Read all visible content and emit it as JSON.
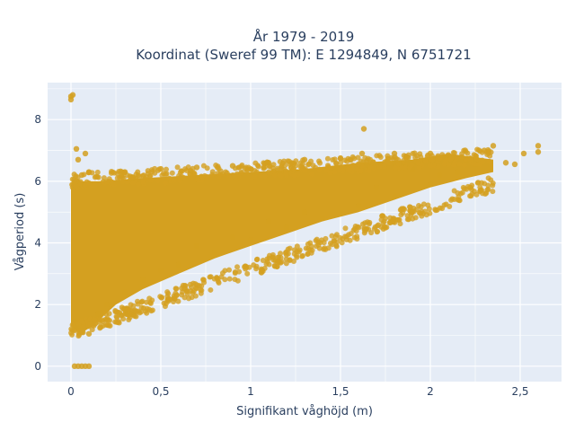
{
  "chart_data": {
    "type": "scatter",
    "title_line1": "År 1979 - 2019",
    "title_line2": "Koordinat (Sweref 99 TM): E 1294849, N 6751721",
    "xlabel": "Signifikant våghöjd (m)",
    "ylabel": "Vågperiod (s)",
    "xlim": [
      -0.13,
      2.73
    ],
    "ylim": [
      -0.5,
      9.2
    ],
    "x_ticks": [
      0,
      0.5,
      1,
      1.5,
      2,
      2.5
    ],
    "x_tick_labels": [
      "0",
      "0,5",
      "1",
      "1,5",
      "2",
      "2,5"
    ],
    "y_ticks": [
      0,
      2,
      4,
      6,
      8
    ],
    "y_tick_labels": [
      "0",
      "2",
      "4",
      "6",
      "8"
    ],
    "grid": true,
    "background": "#e5ecf6",
    "marker_color": "#d4a020",
    "series": [
      {
        "points": [
          [
            0.0,
            8.75
          ],
          [
            0.0,
            8.65
          ],
          [
            0.01,
            8.8
          ],
          [
            0.02,
            0.0
          ],
          [
            0.04,
            0.0
          ],
          [
            0.06,
            0.0
          ],
          [
            0.08,
            0.0
          ],
          [
            0.1,
            0.0
          ],
          [
            0.03,
            7.05
          ],
          [
            0.08,
            6.9
          ],
          [
            0.04,
            6.7
          ],
          [
            0.06,
            6.2
          ],
          [
            0.1,
            6.3
          ],
          [
            0.02,
            1.45
          ],
          [
            0.06,
            1.1
          ],
          [
            0.1,
            1.05
          ],
          [
            0.15,
            1.7
          ],
          [
            0.2,
            2.0
          ],
          [
            0.3,
            2.4
          ],
          [
            0.4,
            2.8
          ],
          [
            0.5,
            3.1
          ],
          [
            0.6,
            3.3
          ],
          [
            0.8,
            3.7
          ],
          [
            1.0,
            4.1
          ],
          [
            1.2,
            4.5
          ],
          [
            1.4,
            4.8
          ],
          [
            1.6,
            5.2
          ],
          [
            1.8,
            5.5
          ],
          [
            0.3,
            6.3
          ],
          [
            0.5,
            6.4
          ],
          [
            0.7,
            6.45
          ],
          [
            0.9,
            6.5
          ],
          [
            1.1,
            6.6
          ],
          [
            1.3,
            6.7
          ],
          [
            1.5,
            6.75
          ],
          [
            1.63,
            7.7
          ],
          [
            1.62,
            6.9
          ],
          [
            1.8,
            6.9
          ],
          [
            2.0,
            6.9
          ],
          [
            2.1,
            6.85
          ],
          [
            2.2,
            6.7
          ],
          [
            2.3,
            7.0
          ],
          [
            2.35,
            7.15
          ],
          [
            2.42,
            6.6
          ],
          [
            2.47,
            6.55
          ],
          [
            2.52,
            6.9
          ],
          [
            2.6,
            7.15
          ],
          [
            2.6,
            6.95
          ],
          [
            1.9,
            6.4
          ],
          [
            2.05,
            6.2
          ],
          [
            2.15,
            6.3
          ],
          [
            2.25,
            6.55
          ],
          [
            2.0,
            5.9
          ],
          [
            1.7,
            5.8
          ],
          [
            1.3,
            5.0
          ],
          [
            1.1,
            4.7
          ],
          [
            0.9,
            4.2
          ],
          [
            0.7,
            3.9
          ]
        ]
      }
    ]
  }
}
